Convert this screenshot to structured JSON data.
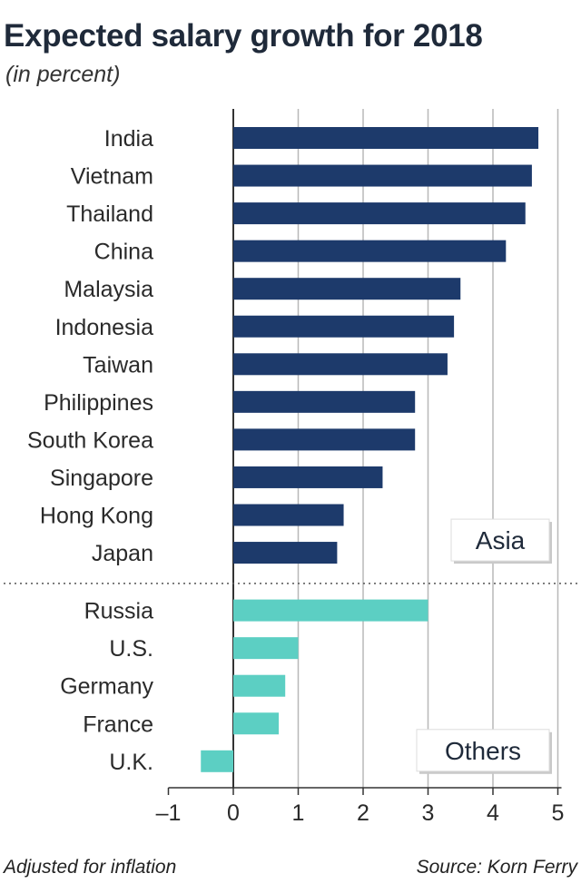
{
  "chart_data": {
    "type": "bar",
    "orientation": "horizontal",
    "title": "Expected salary growth for 2018",
    "subtitle": "(in percent)",
    "xlim": [
      -1,
      5
    ],
    "xticks": [
      -1,
      0,
      1,
      2,
      3,
      4,
      5
    ],
    "xtick_labels": [
      "–1",
      "0",
      "1",
      "2",
      "3",
      "4",
      "5"
    ],
    "groups": [
      {
        "name": "Asia",
        "color": "#1d3a6b",
        "categories": [
          "India",
          "Vietnam",
          "Thailand",
          "China",
          "Malaysia",
          "Indonesia",
          "Taiwan",
          "Philippines",
          "South Korea",
          "Singapore",
          "Hong Kong",
          "Japan"
        ],
        "values": [
          4.7,
          4.6,
          4.5,
          4.2,
          3.5,
          3.4,
          3.3,
          2.8,
          2.8,
          2.3,
          1.7,
          1.6
        ]
      },
      {
        "name": "Others",
        "color": "#5ccfc3",
        "categories": [
          "Russia",
          "U.S.",
          "Germany",
          "France",
          "U.K."
        ],
        "values": [
          3.0,
          1.0,
          0.8,
          0.7,
          -0.5
        ]
      }
    ],
    "footnote": "Adjusted for inflation",
    "source": "Source: Korn Ferry"
  }
}
